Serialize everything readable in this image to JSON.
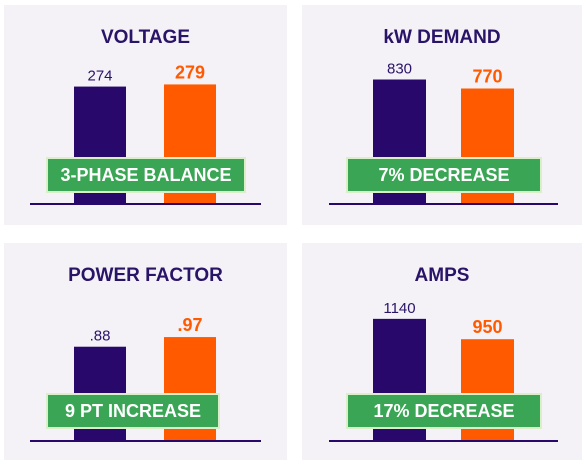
{
  "colors": {
    "before": "#28096b",
    "after": "#ff5a00",
    "badge": "#3aa655",
    "title": "#2a1468",
    "panel_bg": "#f4f2f7"
  },
  "chart_data": [
    {
      "type": "bar",
      "title": "VOLTAGE",
      "categories": [
        "",
        ""
      ],
      "values": [
        274,
        279
      ],
      "value_labels": [
        "274",
        "279"
      ],
      "annotation": "3-PHASE BALANCE",
      "ylim": [
        0,
        350
      ]
    },
    {
      "type": "bar",
      "title": "kW DEMAND",
      "categories": [
        "",
        ""
      ],
      "values": [
        830,
        770
      ],
      "value_labels": [
        "830",
        "770"
      ],
      "annotation": "7% DECREASE",
      "ylim": [
        0,
        1000
      ]
    },
    {
      "type": "bar",
      "title": "POWER FACTOR",
      "categories": [
        "",
        ""
      ],
      "values": [
        0.88,
        0.97
      ],
      "value_labels": [
        ".88",
        ".97"
      ],
      "annotation": "9 PT INCREASE",
      "ylim": [
        0,
        1.4
      ]
    },
    {
      "type": "bar",
      "title": "AMPS",
      "categories": [
        "",
        ""
      ],
      "values": [
        1140,
        950
      ],
      "value_labels": [
        "1140",
        "950"
      ],
      "annotation": "17% DECREASE",
      "ylim": [
        0,
        1400
      ]
    }
  ]
}
